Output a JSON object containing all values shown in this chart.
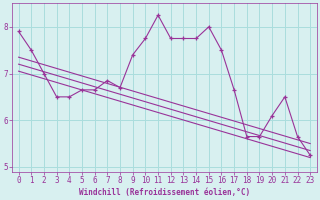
{
  "x_data": [
    0,
    1,
    2,
    3,
    4,
    5,
    6,
    7,
    8,
    9,
    10,
    11,
    12,
    13,
    14,
    15,
    16,
    17,
    18,
    19,
    20,
    21,
    22,
    23
  ],
  "y_data": [
    7.9,
    7.5,
    7.0,
    6.5,
    6.5,
    6.65,
    6.65,
    6.85,
    6.7,
    7.4,
    7.75,
    8.25,
    7.75,
    7.75,
    7.75,
    8.0,
    7.5,
    6.65,
    5.65,
    5.65,
    6.1,
    6.5,
    5.65,
    5.25
  ],
  "line_color": "#993399",
  "bg_color": "#d8f0f0",
  "grid_color": "#aadddd",
  "xlabel": "Windchill (Refroidissement éolien,°C)",
  "ylim": [
    4.9,
    8.5
  ],
  "xlim": [
    -0.5,
    23.5
  ],
  "yticks": [
    5,
    6,
    7,
    8
  ],
  "xticks": [
    0,
    1,
    2,
    3,
    4,
    5,
    6,
    7,
    8,
    9,
    10,
    11,
    12,
    13,
    14,
    15,
    16,
    17,
    18,
    19,
    20,
    21,
    22,
    23
  ],
  "reg_upper_start": 7.05,
  "reg_upper_end": 5.2,
  "reg_lower_start": 7.35,
  "reg_lower_end": 5.5
}
